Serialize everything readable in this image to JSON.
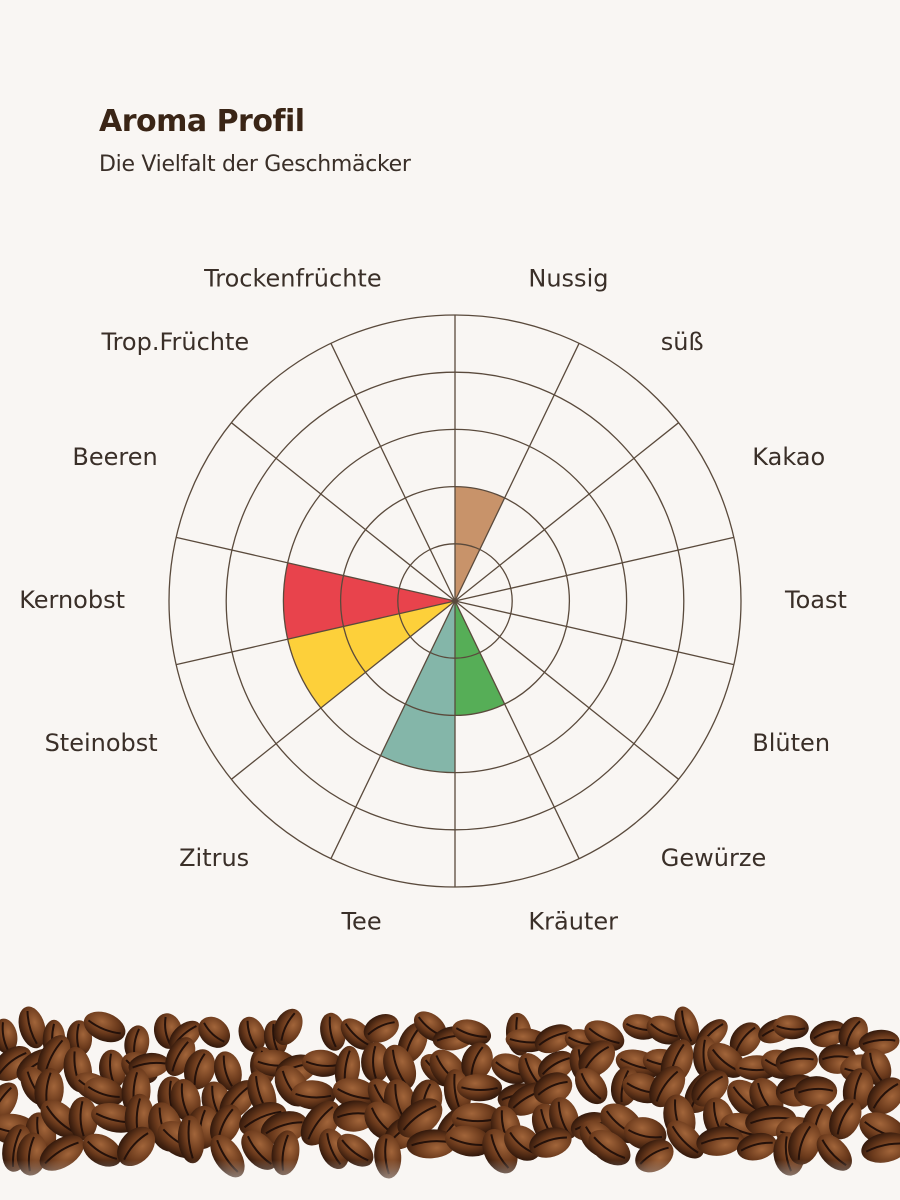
{
  "header": {
    "title": "Aroma Profil",
    "subtitle": "Die Vielfalt der Geschmäcker"
  },
  "chart_data": {
    "type": "polar-area",
    "rings": 5,
    "max": 5,
    "grid": true,
    "grid_color": "#5a4a3c",
    "label_color": "#3a2f28",
    "categories": [
      "Nussig",
      "süß",
      "Kakao",
      "Toast",
      "Blüten",
      "Gewürze",
      "Kräuter",
      "Tee",
      "Zitrus",
      "Steinobst",
      "Kernobst",
      "Beeren",
      "Trop.Früchte",
      "Trockenfrüchte"
    ],
    "values": [
      2,
      0,
      0,
      0,
      0,
      0,
      2,
      3,
      0,
      3,
      3,
      0,
      0,
      0
    ],
    "colors": [
      "#c8936a",
      "#c8936a",
      "#c8936a",
      "#c8936a",
      "#c8936a",
      "#c8936a",
      "#56ae57",
      "#84b6a9",
      "#f3c62e",
      "#fdd03a",
      "#e8434c",
      "#e8434c",
      "#e8434c",
      "#e8434c"
    ]
  }
}
